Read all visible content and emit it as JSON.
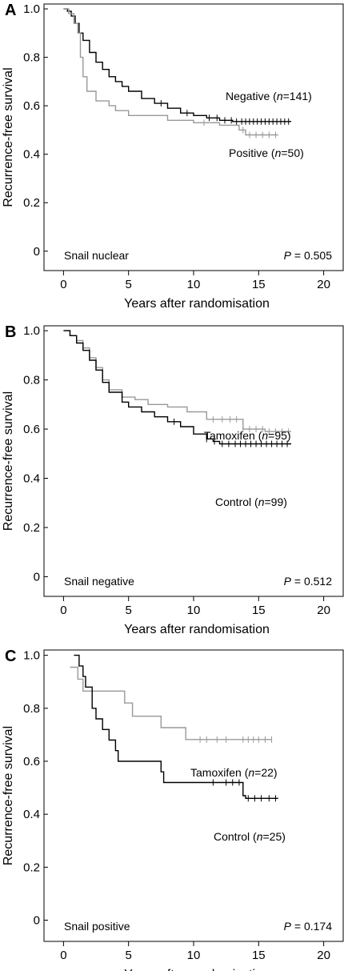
{
  "chart_data": [
    {
      "type": "line",
      "panel": "A",
      "xlabel": "Years after randomisation",
      "ylabel": "Recurrence-free survival",
      "xlim": [
        -1.5,
        21.5
      ],
      "ylim": [
        -0.08,
        1.02
      ],
      "xticks": [
        "0",
        "5",
        "10",
        "15",
        "20"
      ],
      "yticks": [
        "0",
        "0.2",
        "0.4",
        "0.6",
        "0.8",
        "1.0"
      ],
      "grid": false,
      "annotation_left": "Snail nuclear",
      "pvalue_label": "P",
      "pvalue": "= 0.505",
      "series": [
        {
          "name": "Negative",
          "n_label": "n",
          "n_value": "=141)",
          "color": "#000000",
          "points": [
            [
              0,
              1.0
            ],
            [
              0.3,
              0.99
            ],
            [
              0.6,
              0.97
            ],
            [
              0.9,
              0.94
            ],
            [
              1.2,
              0.9
            ],
            [
              1.5,
              0.87
            ],
            [
              2.0,
              0.82
            ],
            [
              2.5,
              0.78
            ],
            [
              3.0,
              0.75
            ],
            [
              3.5,
              0.72
            ],
            [
              4.0,
              0.7
            ],
            [
              4.5,
              0.68
            ],
            [
              5.0,
              0.66
            ],
            [
              6.0,
              0.63
            ],
            [
              7.0,
              0.61
            ],
            [
              8.0,
              0.59
            ],
            [
              9.0,
              0.57
            ],
            [
              10.0,
              0.56
            ],
            [
              11.0,
              0.55
            ],
            [
              12.0,
              0.54
            ],
            [
              13.0,
              0.535
            ],
            [
              17.5,
              0.535
            ]
          ],
          "censor": [
            7.5,
            9.5,
            11.2,
            11.8,
            12.4,
            12.9,
            13.3,
            13.7,
            14.0,
            14.3,
            14.6,
            14.9,
            15.2,
            15.5,
            15.8,
            16.1,
            16.4,
            16.7,
            17.0,
            17.3
          ]
        },
        {
          "name": "Positive",
          "n_label": "n",
          "n_value": "=50)",
          "color": "#999999",
          "points": [
            [
              0,
              1.0
            ],
            [
              0.4,
              0.98
            ],
            [
              0.8,
              0.94
            ],
            [
              1.1,
              0.9
            ],
            [
              1.3,
              0.8
            ],
            [
              1.5,
              0.72
            ],
            [
              1.8,
              0.66
            ],
            [
              2.5,
              0.62
            ],
            [
              3.5,
              0.6
            ],
            [
              4.0,
              0.58
            ],
            [
              5.0,
              0.56
            ],
            [
              8.0,
              0.54
            ],
            [
              10.0,
              0.53
            ],
            [
              12.0,
              0.52
            ],
            [
              13.5,
              0.5
            ],
            [
              14.0,
              0.48
            ],
            [
              16.5,
              0.48
            ]
          ],
          "censor": [
            10.8,
            13.8,
            14.3,
            14.8,
            15.3,
            15.8,
            16.3
          ]
        }
      ]
    },
    {
      "type": "line",
      "panel": "B",
      "xlabel": "Years after randomisation",
      "ylabel": "Recurrence-free survival",
      "xlim": [
        -1.5,
        21.5
      ],
      "ylim": [
        -0.08,
        1.02
      ],
      "xticks": [
        "0",
        "5",
        "10",
        "15",
        "20"
      ],
      "yticks": [
        "0",
        "0.2",
        "0.4",
        "0.6",
        "0.8",
        "1.0"
      ],
      "grid": false,
      "annotation_left": "Snail negative",
      "pvalue_label": "P",
      "pvalue": "= 0.512",
      "series": [
        {
          "name": "Tamoxifen",
          "n_label": "n",
          "n_value": "=95)",
          "color": "#999999",
          "points": [
            [
              0,
              1.0
            ],
            [
              0.5,
              0.98
            ],
            [
              1.0,
              0.96
            ],
            [
              1.5,
              0.93
            ],
            [
              2.0,
              0.89
            ],
            [
              2.5,
              0.85
            ],
            [
              3.0,
              0.8
            ],
            [
              3.5,
              0.76
            ],
            [
              4.5,
              0.73
            ],
            [
              5.5,
              0.72
            ],
            [
              6.5,
              0.7
            ],
            [
              8.0,
              0.69
            ],
            [
              9.5,
              0.67
            ],
            [
              11.0,
              0.64
            ],
            [
              13.0,
              0.64
            ],
            [
              13.8,
              0.6
            ],
            [
              15.5,
              0.59
            ],
            [
              17.5,
              0.59
            ]
          ],
          "censor": [
            11.5,
            12.2,
            12.8,
            13.3,
            13.8,
            14.3,
            14.8,
            15.3,
            15.8,
            16.3,
            16.8,
            17.3
          ]
        },
        {
          "name": "Control",
          "n_label": "n",
          "n_value": "=99)",
          "color": "#000000",
          "points": [
            [
              0,
              1.0
            ],
            [
              0.5,
              0.98
            ],
            [
              1.0,
              0.95
            ],
            [
              1.5,
              0.92
            ],
            [
              2.0,
              0.88
            ],
            [
              2.5,
              0.84
            ],
            [
              3.0,
              0.79
            ],
            [
              3.5,
              0.75
            ],
            [
              4.5,
              0.71
            ],
            [
              5.0,
              0.69
            ],
            [
              6.0,
              0.67
            ],
            [
              7.0,
              0.65
            ],
            [
              8.0,
              0.63
            ],
            [
              9.0,
              0.61
            ],
            [
              10.0,
              0.58
            ],
            [
              11.0,
              0.56
            ],
            [
              11.5,
              0.55
            ],
            [
              12.0,
              0.54
            ],
            [
              17.5,
              0.54
            ]
          ],
          "censor": [
            8.5,
            11.0,
            11.6,
            12.2,
            12.7,
            13.2,
            13.6,
            14.0,
            14.4,
            14.8,
            15.2,
            15.6,
            16.0,
            16.4,
            16.8,
            17.2
          ]
        }
      ]
    },
    {
      "type": "line",
      "panel": "C",
      "xlabel": "Years after randomisation",
      "ylabel": "Recurrence-free survival",
      "xlim": [
        -1.5,
        21.5
      ],
      "ylim": [
        -0.08,
        1.02
      ],
      "xticks": [
        "0",
        "5",
        "10",
        "15",
        "20"
      ],
      "yticks": [
        "0",
        "0.2",
        "0.4",
        "0.6",
        "0.8",
        "1.0"
      ],
      "grid": false,
      "annotation_left": "Snail positive",
      "pvalue_label": "P",
      "pvalue": "= 0.174",
      "series": [
        {
          "name": "Tamoxifen",
          "n_label": "n",
          "n_value": "=22)",
          "color": "#999999",
          "points": [
            [
              0.5,
              0.955
            ],
            [
              1.1,
              0.955
            ],
            [
              1.1,
              0.91
            ],
            [
              1.5,
              0.91
            ],
            [
              1.5,
              0.865
            ],
            [
              4.7,
              0.865
            ],
            [
              4.7,
              0.82
            ],
            [
              5.3,
              0.82
            ],
            [
              5.3,
              0.77
            ],
            [
              7.5,
              0.77
            ],
            [
              7.5,
              0.727
            ],
            [
              9.4,
              0.727
            ],
            [
              9.4,
              0.682
            ],
            [
              16.0,
              0.682
            ]
          ],
          "censor": [
            10.5,
            11.0,
            11.8,
            12.5,
            13.8,
            14.2,
            14.6,
            15.0,
            15.5,
            16.0
          ]
        },
        {
          "name": "Control",
          "n_label": "n",
          "n_value": "=25)",
          "color": "#000000",
          "points": [
            [
              0.8,
              1.0
            ],
            [
              1.2,
              1.0
            ],
            [
              1.2,
              0.96
            ],
            [
              1.5,
              0.96
            ],
            [
              1.5,
              0.92
            ],
            [
              1.7,
              0.92
            ],
            [
              1.7,
              0.88
            ],
            [
              2.2,
              0.88
            ],
            [
              2.2,
              0.8
            ],
            [
              2.5,
              0.8
            ],
            [
              2.5,
              0.76
            ],
            [
              3.0,
              0.76
            ],
            [
              3.0,
              0.72
            ],
            [
              3.5,
              0.72
            ],
            [
              3.5,
              0.68
            ],
            [
              4.0,
              0.68
            ],
            [
              4.0,
              0.64
            ],
            [
              4.2,
              0.64
            ],
            [
              4.2,
              0.6
            ],
            [
              7.5,
              0.6
            ],
            [
              7.5,
              0.56
            ],
            [
              7.7,
              0.56
            ],
            [
              7.7,
              0.52
            ],
            [
              13.8,
              0.52
            ],
            [
              13.8,
              0.47
            ],
            [
              14.0,
              0.47
            ],
            [
              14.0,
              0.46
            ],
            [
              16.5,
              0.46
            ]
          ],
          "censor": [
            11.5,
            12.5,
            13.0,
            13.5,
            14.2,
            14.7,
            15.2,
            15.8,
            16.3
          ]
        }
      ]
    }
  ]
}
